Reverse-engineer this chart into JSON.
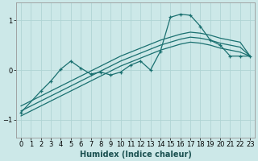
{
  "background_color": "#cce8e8",
  "grid_color": "#b0d4d4",
  "line_color": "#1a7070",
  "xlabel": "Humidex (Indice chaleur)",
  "xlabel_fontsize": 7,
  "tick_fontsize": 6,
  "xlim": [
    -0.5,
    23.5
  ],
  "ylim": [
    -1.35,
    1.35
  ],
  "yticks": [
    -1,
    0,
    1
  ],
  "xticks": [
    0,
    1,
    2,
    3,
    4,
    5,
    6,
    7,
    8,
    9,
    10,
    11,
    12,
    13,
    14,
    15,
    16,
    17,
    18,
    19,
    20,
    21,
    22,
    23
  ],
  "line_jagged_x": [
    0,
    2,
    3,
    4,
    5,
    6,
    7,
    8,
    9,
    10,
    11,
    12,
    13,
    14,
    15,
    16,
    17,
    18,
    19,
    20,
    21,
    22,
    23
  ],
  "line_jagged_y": [
    -0.85,
    -0.42,
    -0.22,
    0.02,
    0.18,
    0.04,
    -0.08,
    -0.04,
    -0.1,
    -0.04,
    0.1,
    0.18,
    0.0,
    0.38,
    1.06,
    1.12,
    1.1,
    0.88,
    0.6,
    0.5,
    0.28,
    0.28,
    0.28
  ],
  "line_reg1_x": [
    0,
    1,
    2,
    3,
    4,
    5,
    6,
    7,
    8,
    9,
    10,
    11,
    12,
    13,
    14,
    15,
    16,
    17,
    18,
    19,
    20,
    21,
    22,
    23
  ],
  "line_reg1_y": [
    -0.72,
    -0.62,
    -0.52,
    -0.42,
    -0.32,
    -0.22,
    -0.12,
    -0.02,
    0.08,
    0.18,
    0.28,
    0.36,
    0.44,
    0.52,
    0.6,
    0.66,
    0.72,
    0.76,
    0.74,
    0.7,
    0.64,
    0.6,
    0.56,
    0.28
  ],
  "line_reg2_x": [
    0,
    1,
    2,
    3,
    4,
    5,
    6,
    7,
    8,
    9,
    10,
    11,
    12,
    13,
    14,
    15,
    16,
    17,
    18,
    19,
    20,
    21,
    22,
    23
  ],
  "line_reg2_y": [
    -0.82,
    -0.72,
    -0.62,
    -0.52,
    -0.42,
    -0.32,
    -0.22,
    -0.12,
    -0.02,
    0.08,
    0.18,
    0.26,
    0.34,
    0.42,
    0.5,
    0.56,
    0.62,
    0.66,
    0.64,
    0.6,
    0.54,
    0.5,
    0.46,
    0.28
  ],
  "line_reg3_x": [
    0,
    1,
    2,
    3,
    4,
    5,
    6,
    7,
    8,
    9,
    10,
    11,
    12,
    13,
    14,
    15,
    16,
    17,
    18,
    19,
    20,
    21,
    22,
    23
  ],
  "line_reg3_y": [
    -0.92,
    -0.82,
    -0.72,
    -0.62,
    -0.52,
    -0.42,
    -0.32,
    -0.22,
    -0.12,
    -0.02,
    0.08,
    0.16,
    0.24,
    0.32,
    0.4,
    0.46,
    0.52,
    0.56,
    0.54,
    0.5,
    0.44,
    0.4,
    0.36,
    0.28
  ]
}
